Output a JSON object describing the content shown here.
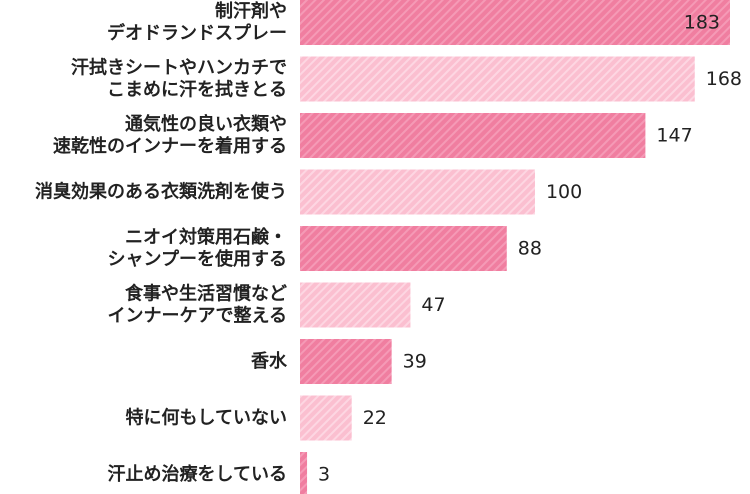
{
  "chart_data": {
    "type": "bar",
    "orientation": "horizontal",
    "title": "",
    "xlabel": "",
    "ylabel": "",
    "xlim": [
      0,
      183
    ],
    "grid": false,
    "legend": "none",
    "categories": [
      [
        "制汗剤や",
        "デオドランドスプレー"
      ],
      [
        "汗拭きシートやハンカチで",
        "こまめに汗を拭きとる"
      ],
      [
        "通気性の良い衣類や",
        "速乾性のインナーを着用する"
      ],
      [
        "消臭効果のある衣類洗剤を使う"
      ],
      [
        "ニオイ対策用石鹸・",
        "シャンプーを使用する"
      ],
      [
        "食事や生活習慣など",
        "インナーケアで整える"
      ],
      [
        "香水"
      ],
      [
        "特に何もしていない"
      ],
      [
        "汗止め治療をしている"
      ]
    ],
    "values": [
      183,
      168,
      147,
      100,
      88,
      47,
      39,
      22,
      3
    ],
    "colors": {
      "dark": "#f07ea0",
      "dark_stripe": "#f59ab6",
      "light": "#fbbfd0",
      "light_stripe": "#fdd6e2",
      "text": "#222222"
    }
  }
}
